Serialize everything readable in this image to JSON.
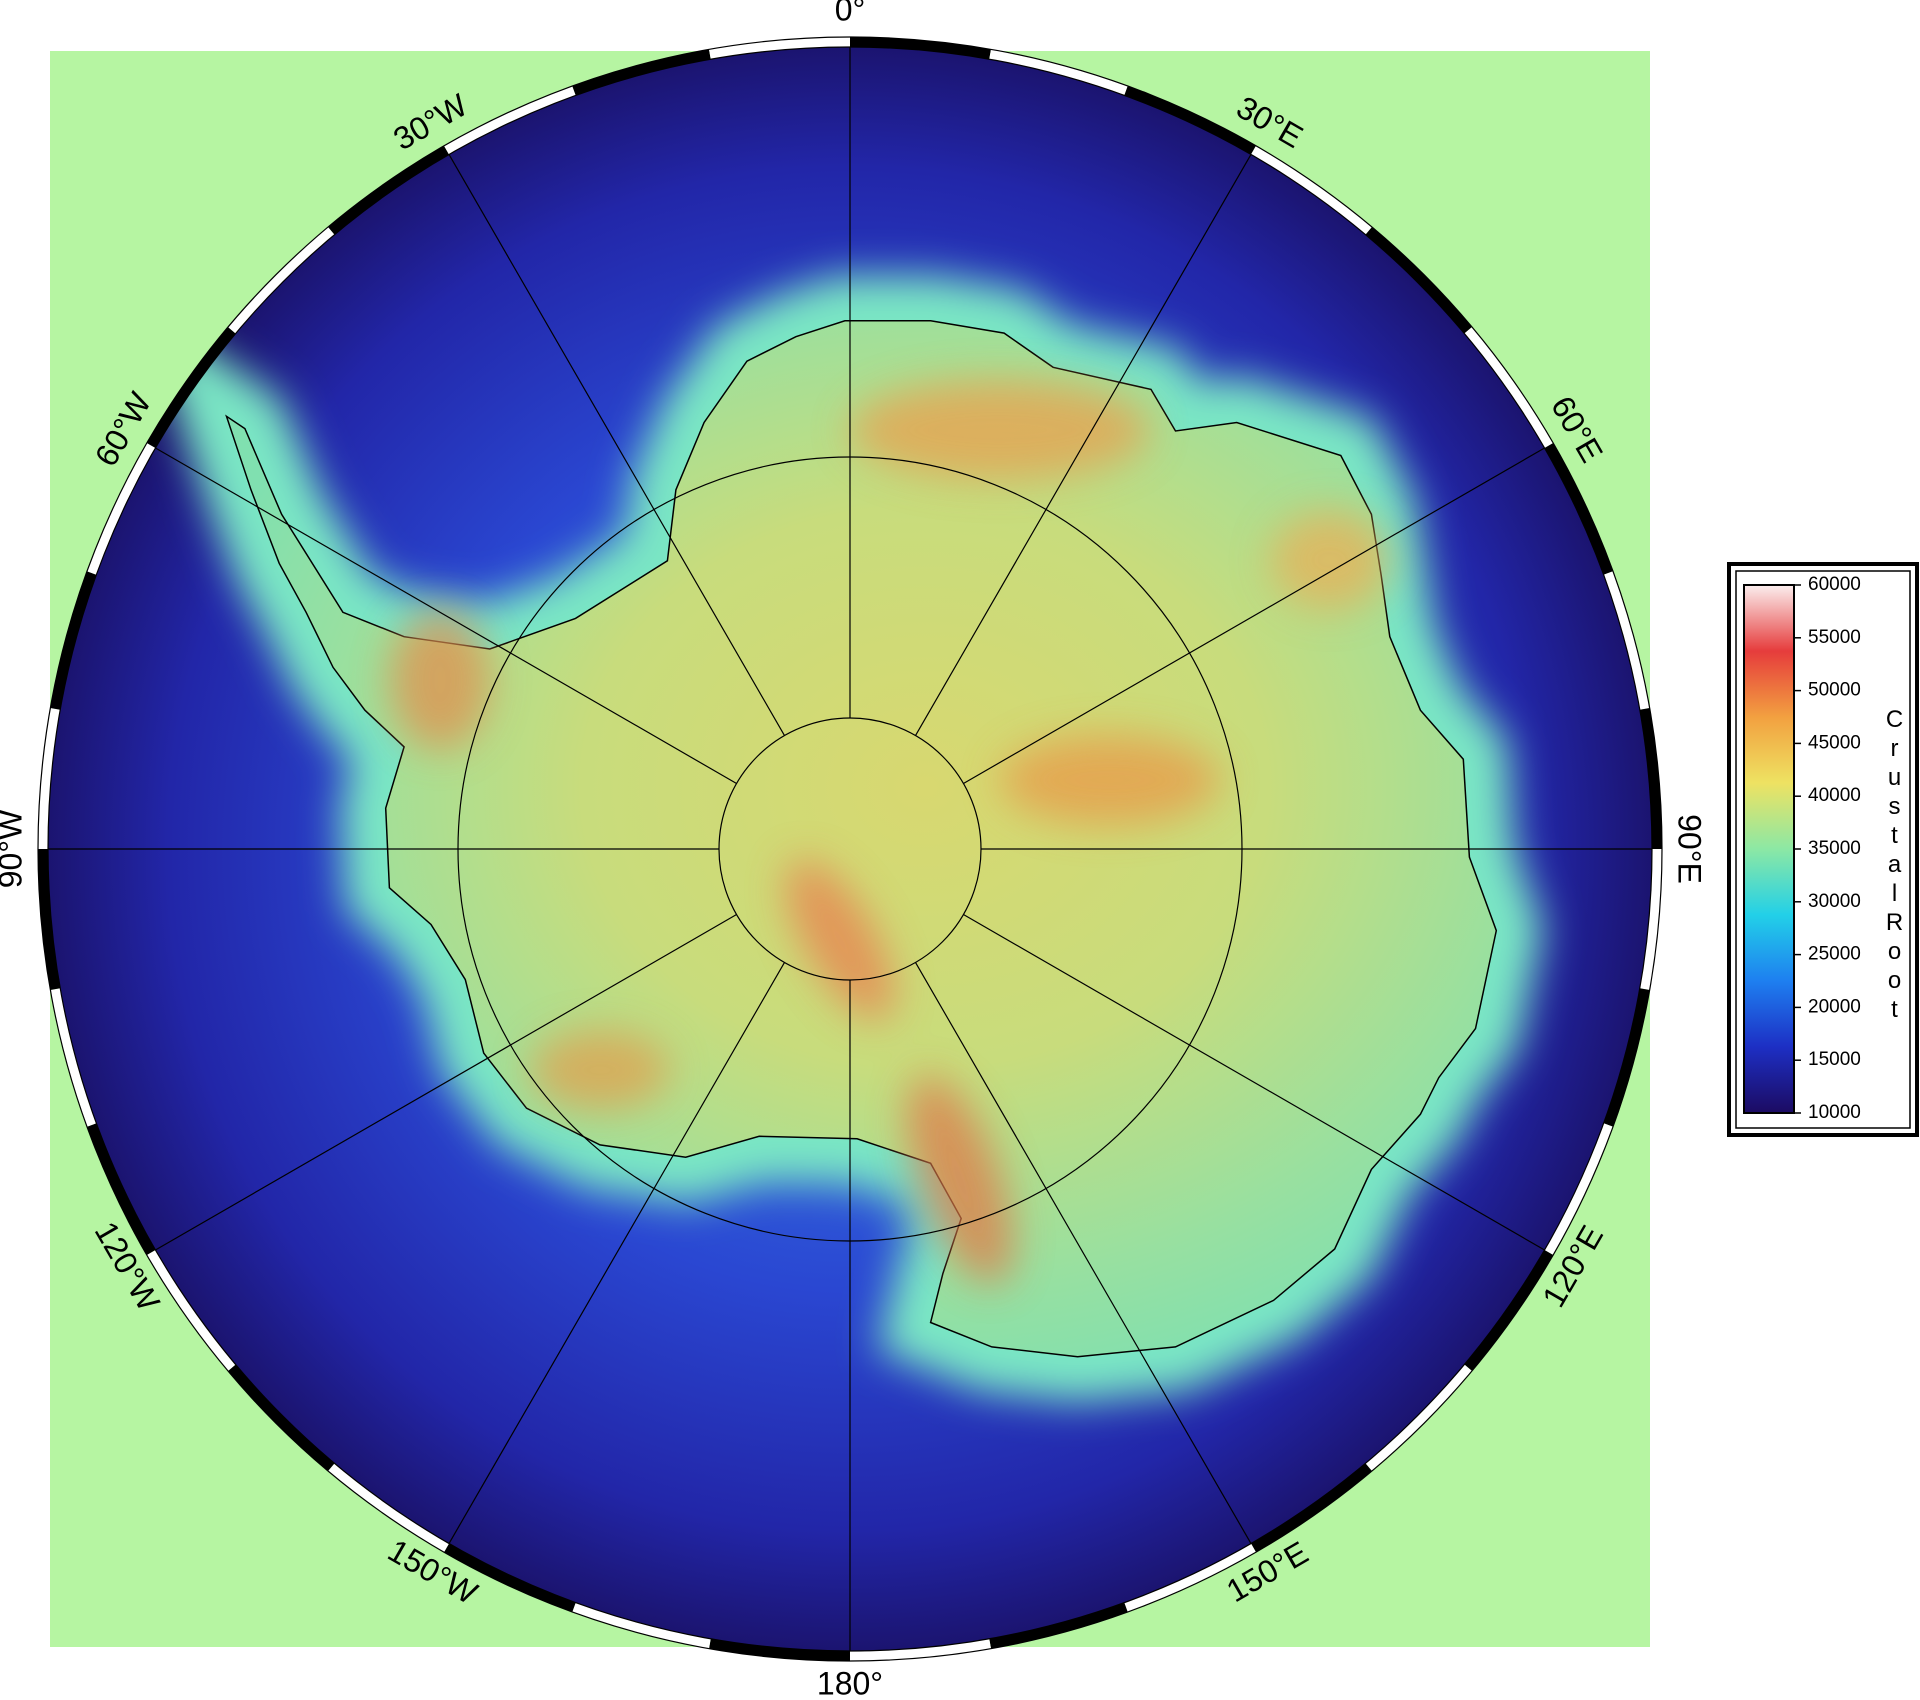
{
  "map": {
    "graticule_labels": [
      "0°",
      "30°E",
      "60°E",
      "90°E",
      "120°E",
      "150°E",
      "180°",
      "150°W",
      "120°W",
      "90°W",
      "60°W",
      "30°W"
    ]
  },
  "colorbar": {
    "title": "CrustalRoot",
    "range": [
      10000,
      60000
    ],
    "ticks": [
      10000,
      15000,
      20000,
      25000,
      30000,
      35000,
      40000,
      45000,
      50000,
      55000,
      60000
    ],
    "colors": [
      "#1c0b62",
      "#1d2fc4",
      "#1e7ff0",
      "#22d0e8",
      "#8ce8a4",
      "#eee262",
      "#f2a040",
      "#e63c3c",
      "#fbeeee"
    ]
  }
}
